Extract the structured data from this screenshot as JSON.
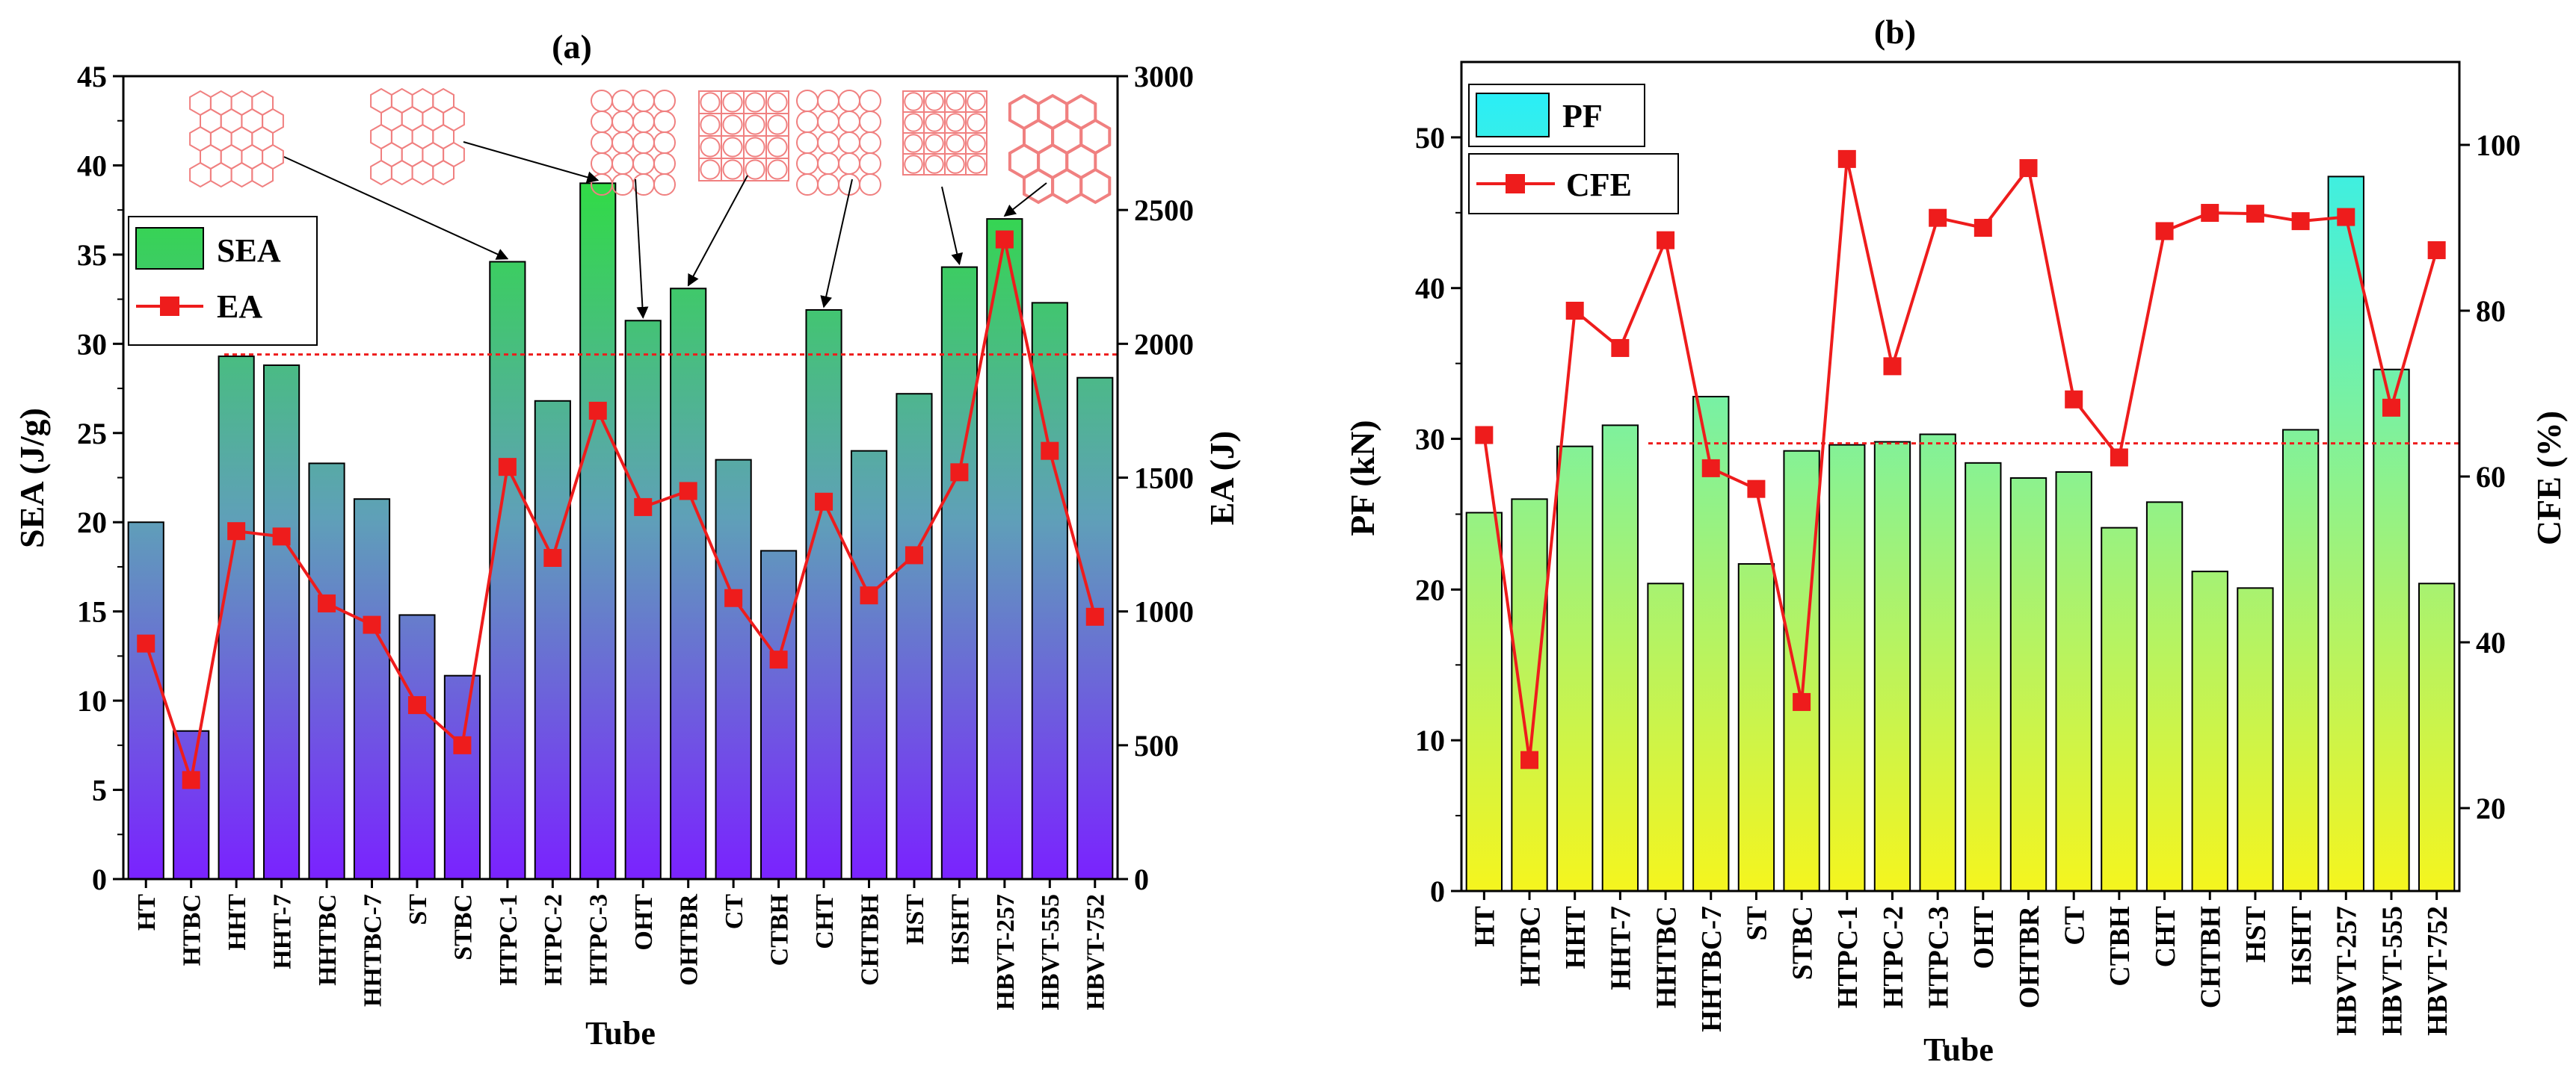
{
  "colors": {
    "sea_top": "#22ee22",
    "sea_bottom": "#7a22ff",
    "pf_top": "#22eeff",
    "pf_bottom": "#f5f51e",
    "line": "#ee1c1c",
    "ref_line": "#ee1c1c",
    "shape_stroke": "#f08080"
  },
  "chart_data": [
    {
      "id": "a",
      "type": "bar+line",
      "title": "(a)",
      "xlabel": "Tube",
      "ylabel": "SEA (J/g)",
      "y2label": "EA (J)",
      "ylim": [
        0,
        45
      ],
      "y2lim": [
        0,
        3000
      ],
      "yticks": [
        "0",
        "5",
        "10",
        "15",
        "20",
        "25",
        "30",
        "35",
        "40",
        "45"
      ],
      "y2ticks": [
        "0",
        "500",
        "1000",
        "1500",
        "2000",
        "2500",
        "3000"
      ],
      "categories": [
        "HT",
        "HTBC",
        "HHT",
        "HHT-7",
        "HHTBC",
        "HHTBC-7",
        "ST",
        "STBC",
        "HTPC-1",
        "HTPC-2",
        "HTPC-3",
        "OHT",
        "OHTBR",
        "CT",
        "CTBH",
        "CHT",
        "CHTBH",
        "HST",
        "HSHT",
        "HBVT-257",
        "HBVT-555",
        "HBVT-752"
      ],
      "series": [
        {
          "name": "SEA",
          "axis": "left",
          "kind": "bar",
          "values": [
            20.0,
            8.3,
            29.3,
            28.8,
            23.3,
            21.3,
            14.8,
            11.4,
            34.6,
            26.8,
            39.0,
            31.3,
            33.1,
            23.5,
            18.4,
            31.9,
            24.0,
            27.2,
            34.3,
            37.0,
            32.3,
            28.1
          ]
        },
        {
          "name": "EA",
          "axis": "right",
          "kind": "line",
          "values": [
            880,
            370,
            1300,
            1280,
            1030,
            950,
            650,
            500,
            1540,
            1200,
            1750,
            1390,
            1450,
            1050,
            820,
            1410,
            1060,
            1210,
            1520,
            2390,
            1600,
            980
          ]
        }
      ],
      "reference_line": {
        "axis": "right",
        "value": 1960
      },
      "legend": {
        "position": "top-left",
        "entries": [
          "SEA",
          "EA"
        ]
      },
      "insets": [
        "hexagonal",
        "hexagonal",
        "circular",
        "square-circle",
        "circular",
        "square-circle",
        "hexagonal"
      ]
    },
    {
      "id": "b",
      "type": "bar+line",
      "title": "(b)",
      "xlabel": "Tube",
      "ylabel": "PF (kN)",
      "y2label": "CFE (%)",
      "ylim": [
        0,
        55
      ],
      "y2lim": [
        10,
        110
      ],
      "yticks": [
        "0",
        "10",
        "20",
        "30",
        "40",
        "50"
      ],
      "y2ticks": [
        "20",
        "40",
        "60",
        "80",
        "100"
      ],
      "categories": [
        "HT",
        "HTBC",
        "HHT",
        "HHT-7",
        "HHTBC",
        "HHTBC-7",
        "ST",
        "STBC",
        "HTPC-1",
        "HTPC-2",
        "HTPC-3",
        "OHT",
        "OHTBR",
        "CT",
        "CTBH",
        "CHT",
        "CHTBH",
        "HST",
        "HSHT",
        "HBVT-257",
        "HBVT-555",
        "HBVT-752"
      ],
      "series": [
        {
          "name": "PF",
          "axis": "left",
          "kind": "bar",
          "values": [
            25.1,
            26.0,
            29.5,
            30.9,
            20.4,
            32.8,
            21.7,
            29.2,
            29.6,
            29.8,
            30.3,
            28.4,
            27.4,
            27.8,
            24.1,
            25.8,
            21.2,
            20.1,
            30.6,
            47.4,
            34.6,
            20.4
          ]
        },
        {
          "name": "CFE",
          "axis": "right",
          "kind": "line",
          "values": [
            65,
            25.8,
            80,
            75.5,
            88.5,
            61,
            58.5,
            32.8,
            98.3,
            73.3,
            91.2,
            90,
            97.2,
            69.3,
            62.3,
            89.6,
            91.8,
            91.7,
            90.8,
            91.3,
            68.3,
            87.3
          ]
        }
      ],
      "reference_line": {
        "axis": "right",
        "value": 64
      },
      "legend": {
        "position": "top-left",
        "entries": [
          "PF",
          "CFE"
        ]
      }
    }
  ]
}
